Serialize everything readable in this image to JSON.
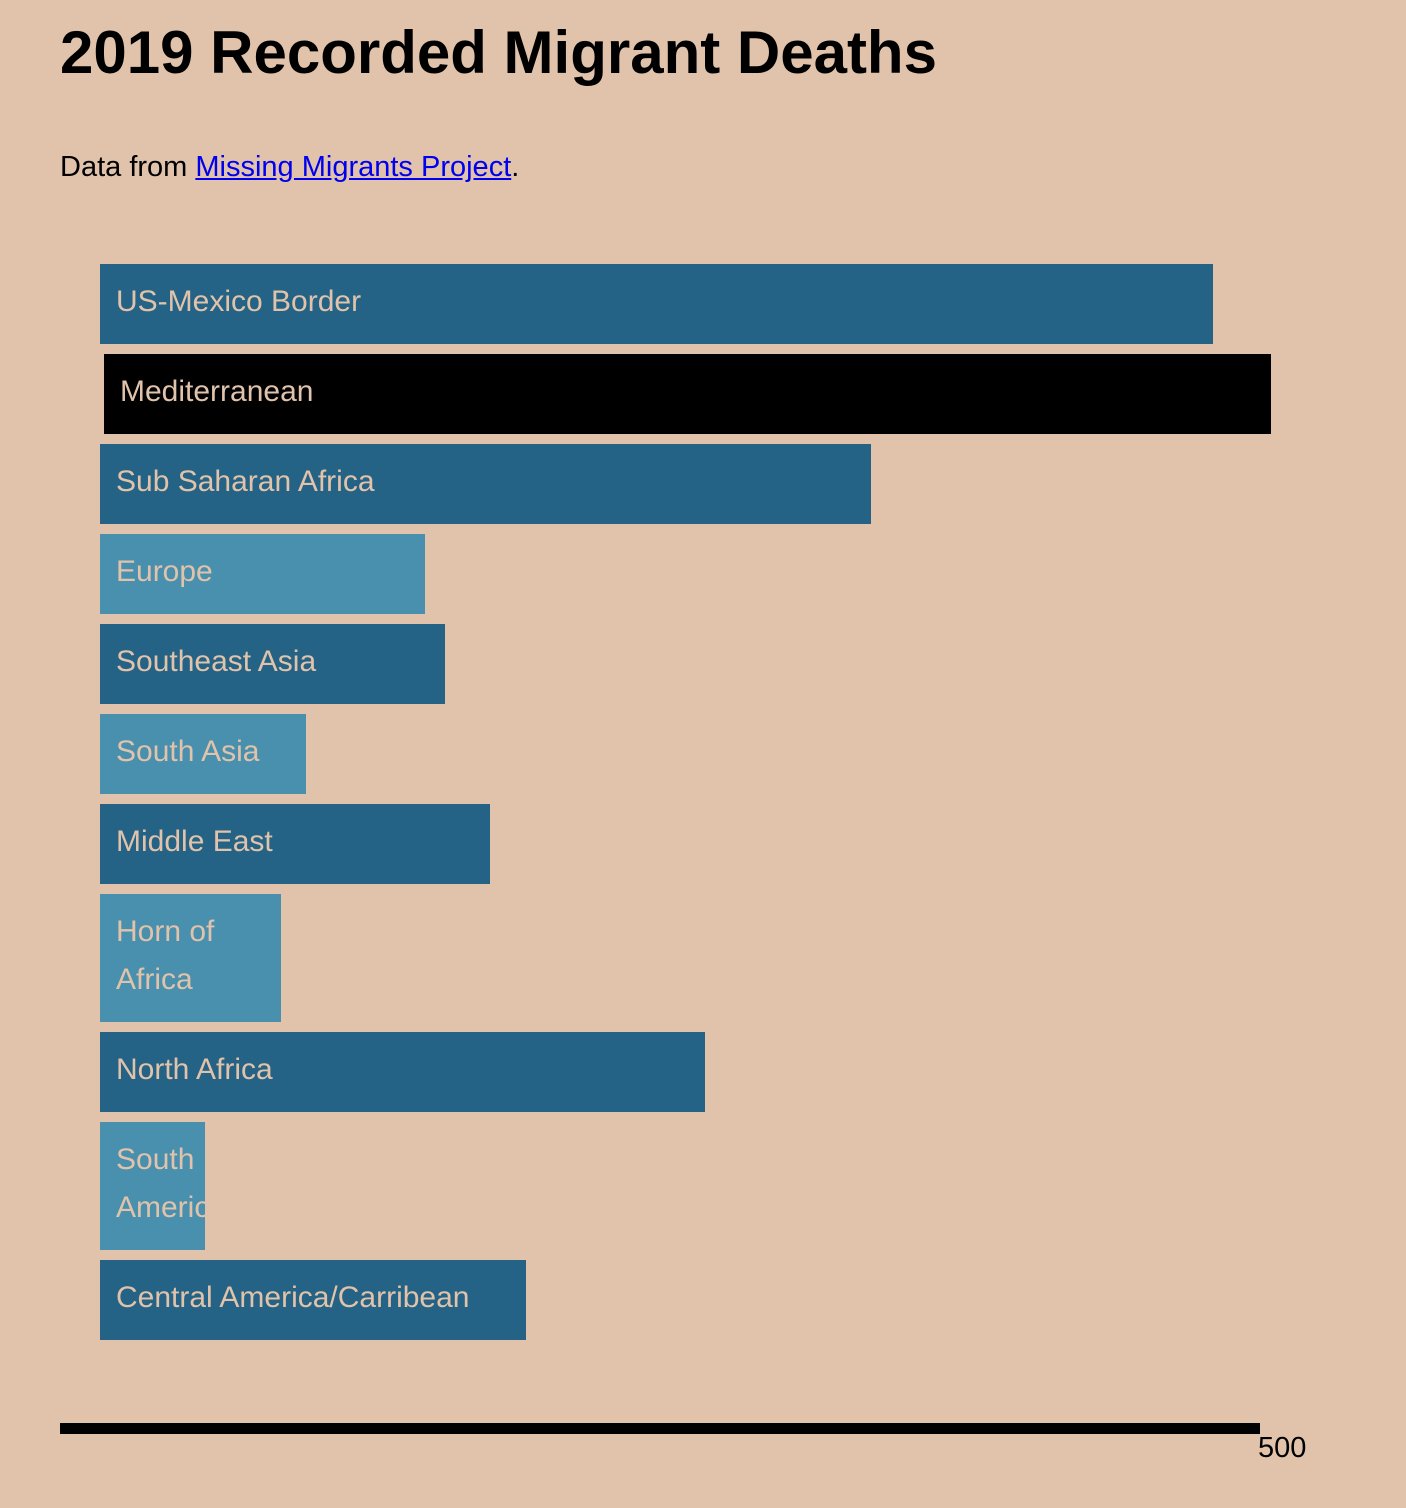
{
  "header": {
    "title": "2019 Recorded Migrant Deaths",
    "source_prefix": "Data from ",
    "source_link_text": "Missing Migrants Project",
    "source_suffix": "."
  },
  "colors": {
    "background": "#e0c3aa",
    "bar_dark": "#256386",
    "bar_light": "#4990ae",
    "bar_highlight": "#000000",
    "label_text": "#e0c3aa",
    "link": "#0000ee"
  },
  "chart_data": {
    "type": "bar",
    "orientation": "horizontal",
    "title": "2019 Recorded Migrant Deaths",
    "xlabel": "",
    "ylabel": "",
    "xlim": [
      0,
      500
    ],
    "x_ticks": [
      500
    ],
    "grid": false,
    "highlighted_category": "Mediterranean",
    "categories": [
      "US-Mexico Border",
      "Mediterranean",
      "Sub Saharan Africa",
      "Europe",
      "Southeast Asia",
      "South Asia",
      "Middle East",
      "Horn of Africa",
      "North Africa",
      "South America",
      "Central America/Carribean"
    ],
    "values": [
      497,
      521,
      344,
      145,
      154,
      92,
      174,
      81,
      270,
      47,
      190
    ],
    "bar_shades": [
      "dark",
      "highlight",
      "dark",
      "light",
      "dark",
      "light",
      "dark",
      "light",
      "dark",
      "light",
      "dark"
    ]
  }
}
